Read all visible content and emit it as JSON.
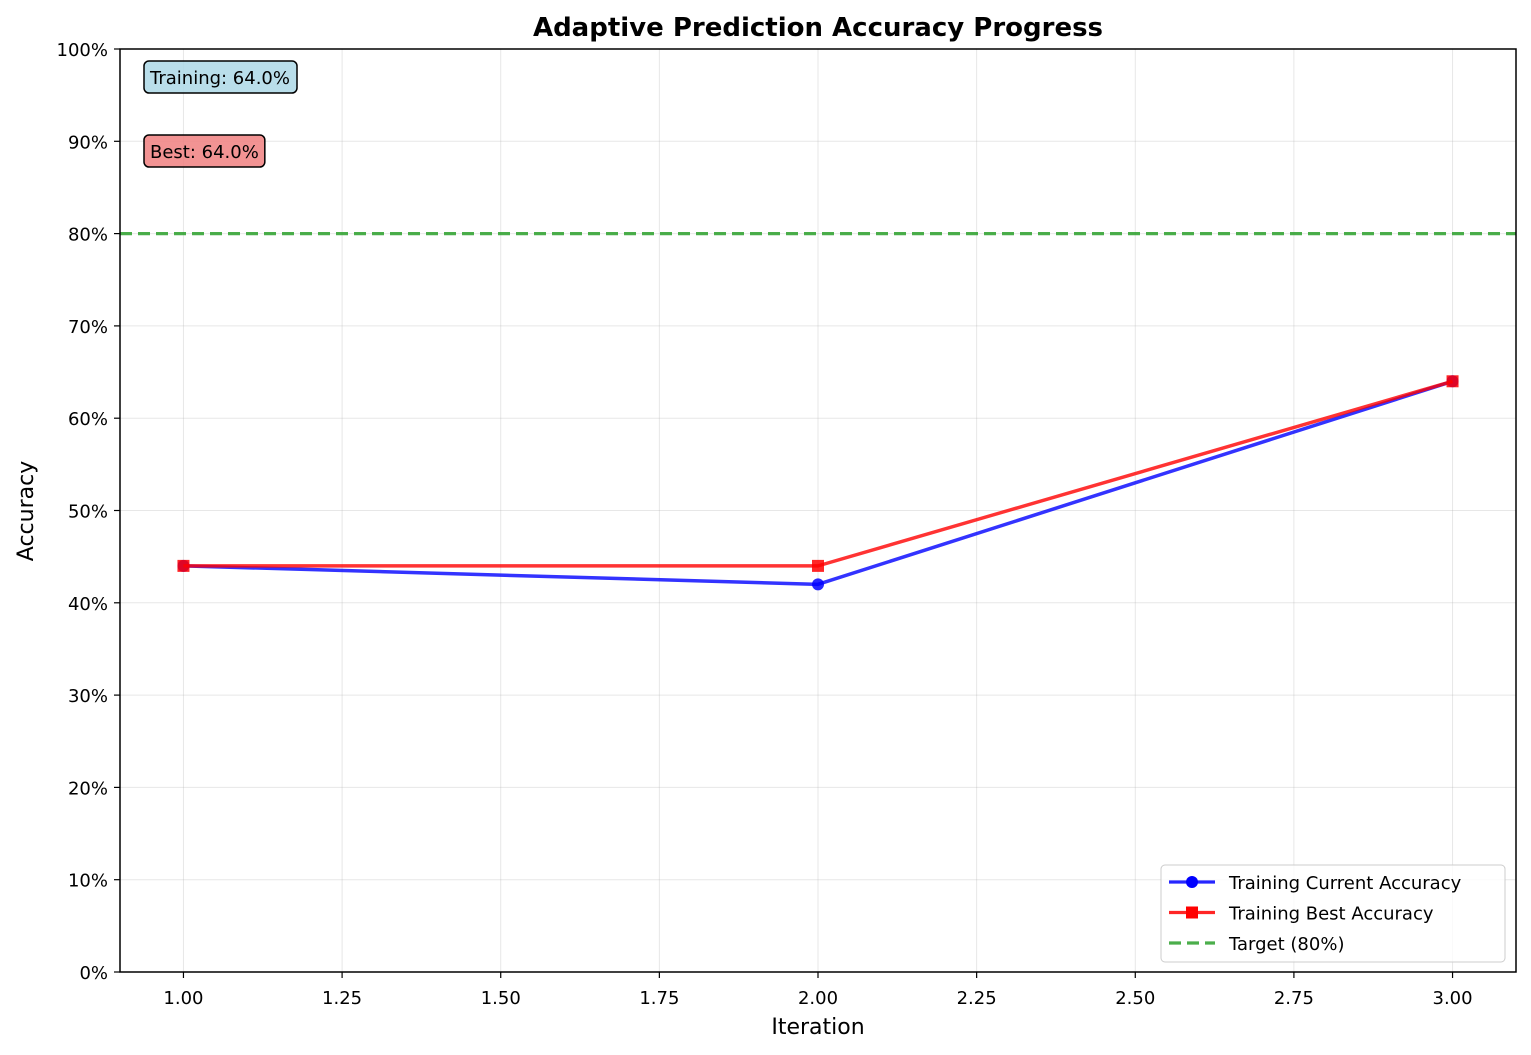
{
  "chart_data": {
    "type": "line",
    "title": "Adaptive Prediction Accuracy Progress",
    "xlabel": "Iteration",
    "ylabel": "Accuracy",
    "xlim": [
      0.9,
      3.1
    ],
    "ylim": [
      0,
      1
    ],
    "x_ticks": [
      1.0,
      1.25,
      1.5,
      1.75,
      2.0,
      2.25,
      2.5,
      2.75,
      3.0
    ],
    "x_tick_labels": [
      "1.00",
      "1.25",
      "1.50",
      "1.75",
      "2.00",
      "2.25",
      "2.50",
      "2.75",
      "3.00"
    ],
    "y_ticks": [
      0,
      0.1,
      0.2,
      0.3,
      0.4,
      0.5,
      0.6,
      0.7,
      0.8,
      0.9,
      1.0
    ],
    "y_tick_labels": [
      "0%",
      "10%",
      "20%",
      "30%",
      "40%",
      "50%",
      "60%",
      "70%",
      "80%",
      "90%",
      "100%"
    ],
    "grid": true,
    "legend_position": "bottom-right",
    "x": [
      1,
      2,
      3
    ],
    "series": [
      {
        "name": "Training Current Accuracy",
        "values": [
          0.44,
          0.42,
          0.64
        ],
        "color": "#0000ff",
        "marker": "circle"
      },
      {
        "name": "Training Best Accuracy",
        "values": [
          0.44,
          0.44,
          0.64
        ],
        "color": "#ff0000",
        "marker": "square"
      }
    ],
    "reference_line": {
      "name": "Target (80%)",
      "y": 0.8,
      "color": "#2ca02c",
      "style": "dashed"
    },
    "annotations": [
      {
        "text": "Training: 64.0%",
        "background": "#add8e6"
      },
      {
        "text": "Best: 64.0%",
        "background": "#f08080"
      }
    ]
  }
}
